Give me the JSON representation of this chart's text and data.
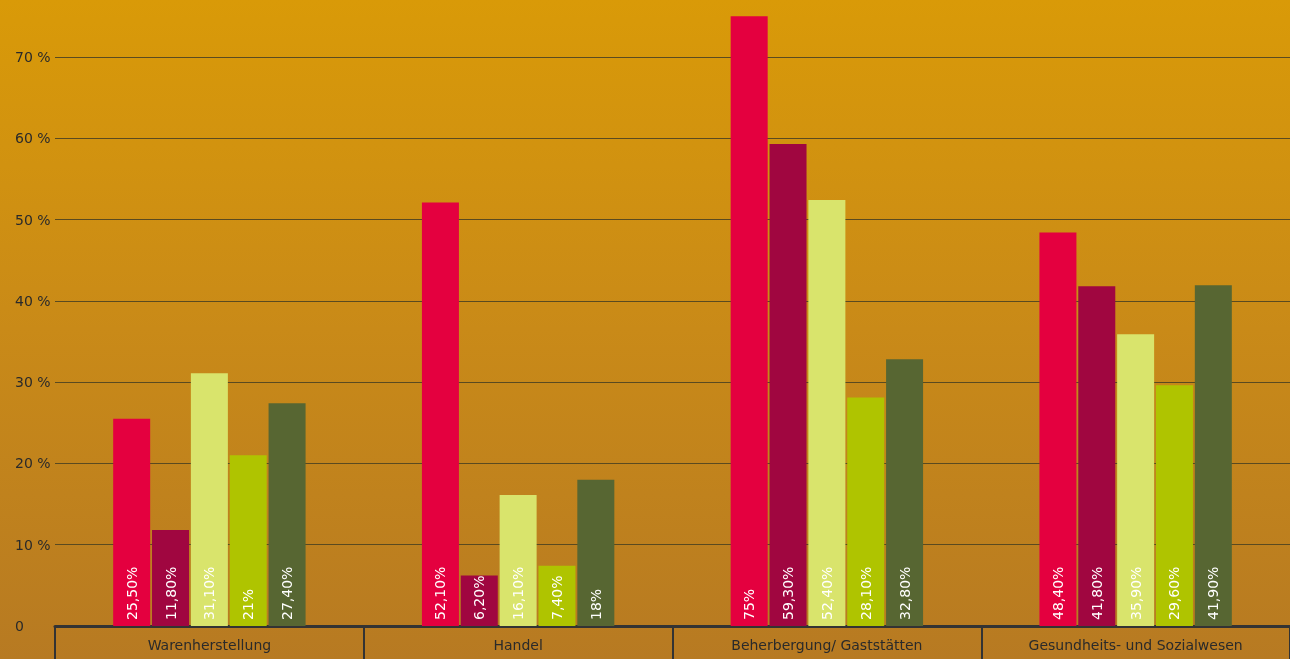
{
  "chart_data": {
    "type": "bar",
    "categories": [
      "Warenherstellung",
      "Handel",
      "Beherbergung/ Gaststätten",
      "Gesundheits- und Sozialwesen"
    ],
    "series": [
      {
        "color": "#e4003f",
        "values": [
          25.5,
          52.1,
          75,
          48.4
        ],
        "value_labels": [
          "25,50%",
          "52,10%",
          "75%",
          "48,40%"
        ]
      },
      {
        "color": "#a00640",
        "values": [
          11.8,
          6.2,
          59.3,
          41.8
        ],
        "value_labels": [
          "11,80%",
          "6,20%",
          "59,30%",
          "41,80%"
        ]
      },
      {
        "color": "#d9e46c",
        "values": [
          31.1,
          16.1,
          52.4,
          35.9
        ],
        "value_labels": [
          "31,10%",
          "16,10%",
          "52,40%",
          "35,90%"
        ]
      },
      {
        "color": "#afc400",
        "values": [
          21,
          7.4,
          28.1,
          29.6
        ],
        "value_labels": [
          "21%",
          "7,40%",
          "28,10%",
          "29,60%"
        ]
      },
      {
        "color": "#576632",
        "values": [
          27.4,
          18,
          32.8,
          41.9
        ],
        "value_labels": [
          "27,40%",
          "18%",
          "32,80%",
          "41,90%"
        ]
      }
    ],
    "ylim": [
      0,
      77
    ],
    "yticks": [
      0,
      {
        "value": 10,
        "label": "10 %"
      },
      {
        "value": 20,
        "label": "20 %"
      },
      {
        "value": 30,
        "label": "30 %"
      },
      {
        "value": 40,
        "label": "40 %"
      },
      {
        "value": 50,
        "label": "50 %"
      },
      {
        "value": 60,
        "label": "60 %"
      },
      {
        "value": 70,
        "label": "70 %"
      }
    ],
    "grid": "y"
  }
}
